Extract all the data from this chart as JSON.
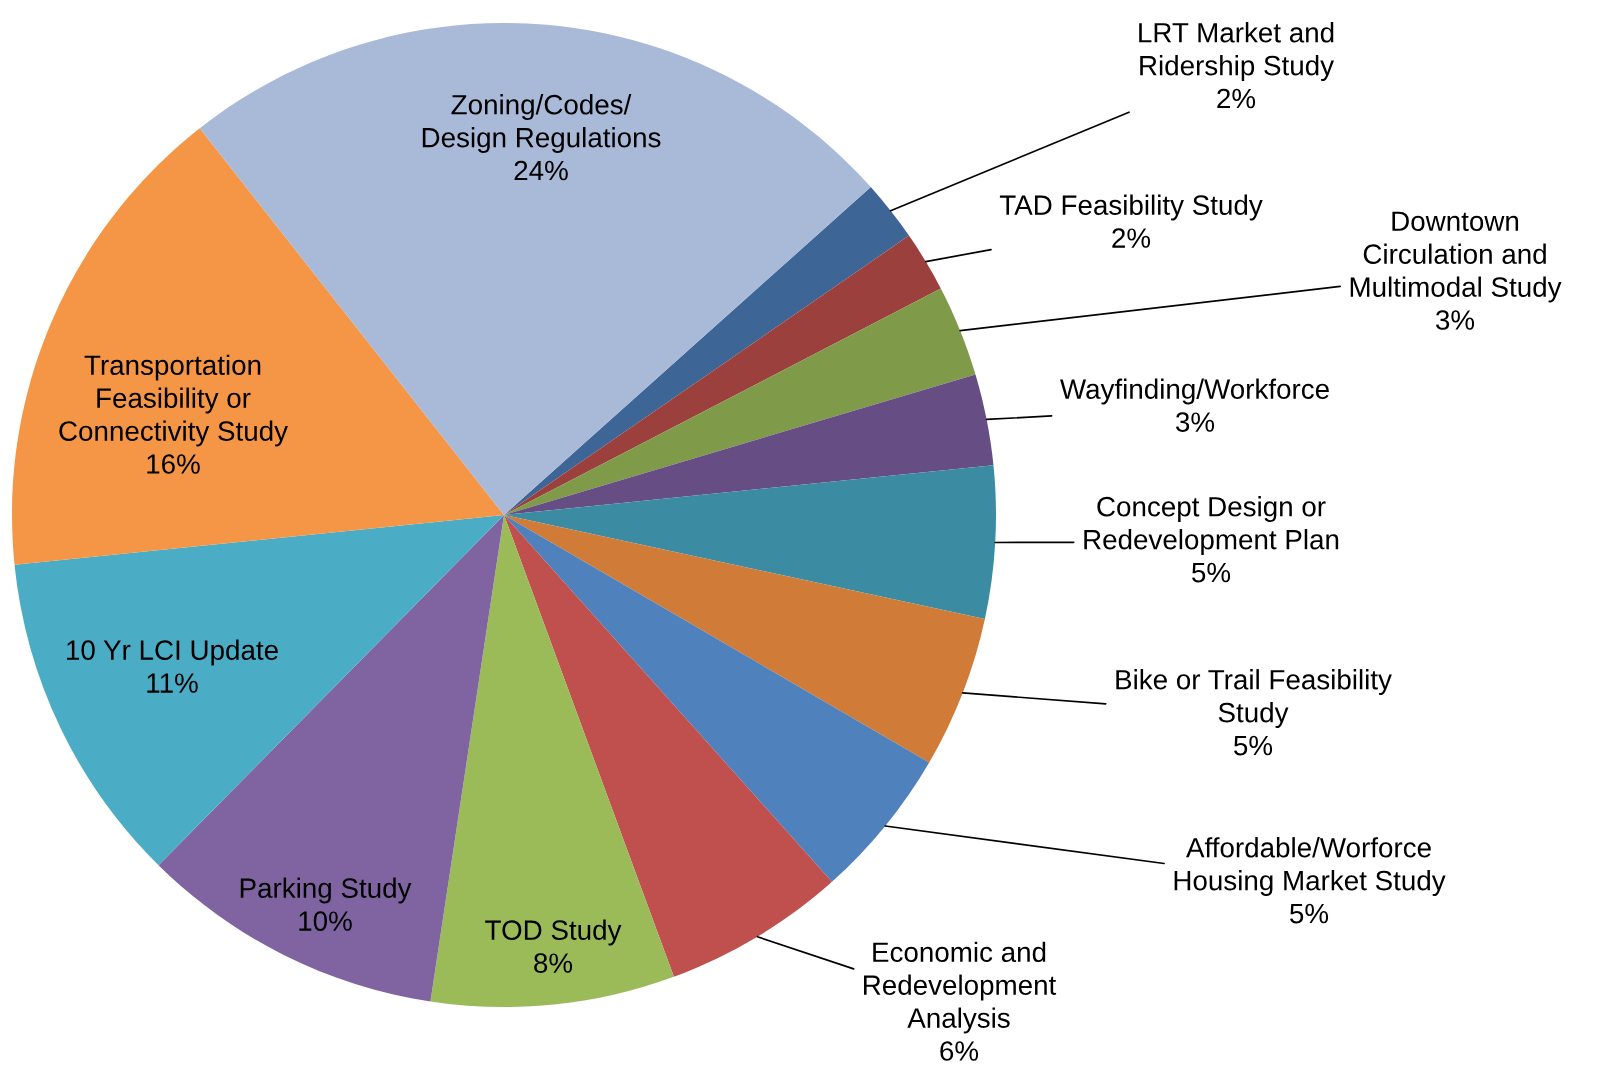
{
  "chart_data": {
    "type": "pie",
    "categories": [
      "LRT Market and\nRidership Study",
      "TAD Feasibility Study",
      "Downtown\nCirculation and\nMultimodal Study",
      "Wayfinding/Workforce",
      "Concept Design or\nRedevelopment Plan",
      "Bike or Trail Feasibility\nStudy",
      "Affordable/Worforce\nHousing Market Study",
      "Economic and\nRedevelopment\nAnalysis",
      "TOD Study",
      "Parking Study",
      "10 Yr LCI Update",
      "Transportation\nFeasibility or\nConnectivity Study",
      "Zoning/Codes/\nDesign Regulations"
    ],
    "values": [
      2,
      2,
      3,
      3,
      5,
      5,
      5,
      6,
      8,
      10,
      11,
      16,
      24
    ],
    "value_labels": [
      "2%",
      "2%",
      "3%",
      "3%",
      "5%",
      "5%",
      "5%",
      "6%",
      "8%",
      "10%",
      "11%",
      "16%",
      "24%"
    ],
    "colors": [
      "#3d6596",
      "#9c403d",
      "#7f9a48",
      "#664e84",
      "#3b8ba3",
      "#d07b37",
      "#4f81bd",
      "#c0504d",
      "#9bbb59",
      "#8064a2",
      "#4bacc6",
      "#f59647",
      "#a9b9d8"
    ]
  }
}
